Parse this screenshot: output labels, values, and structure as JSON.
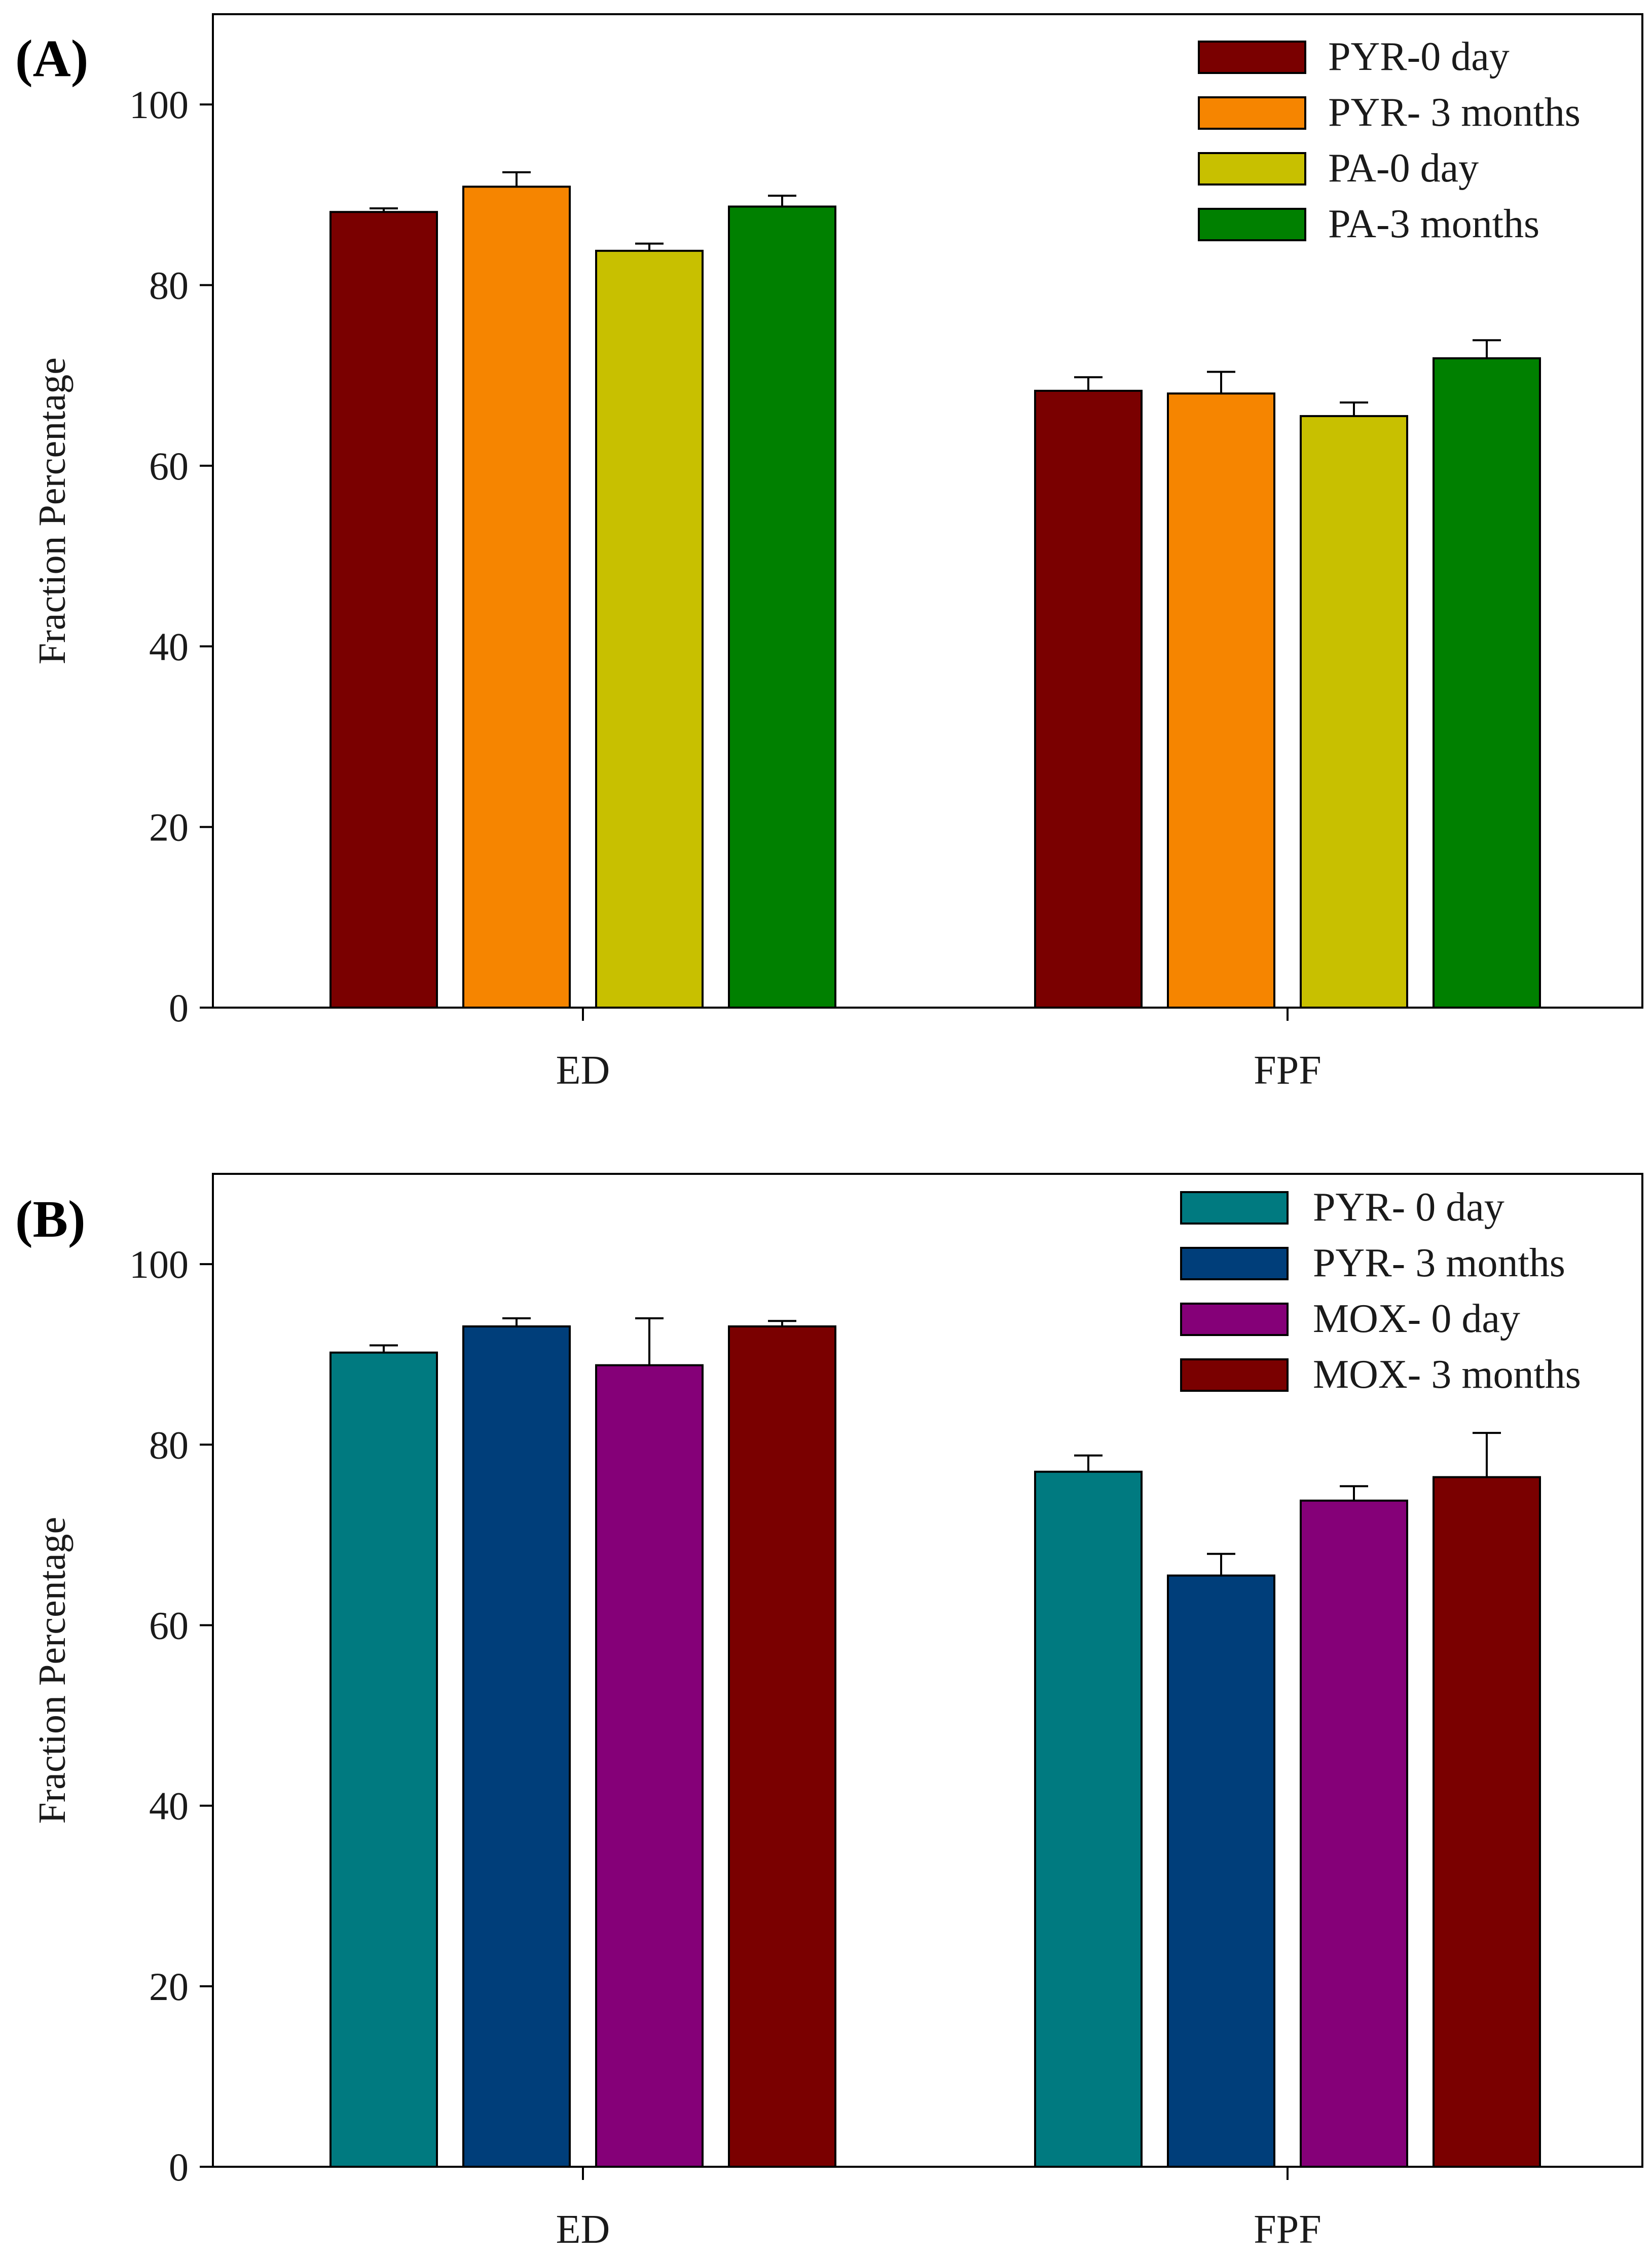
{
  "chart_data": [
    {
      "panel_label": "(A)",
      "type": "bar",
      "categories": [
        "ED",
        "FPF"
      ],
      "ylabel": "Fraction Percentage",
      "ylim": [
        0,
        110
      ],
      "yticks": [
        0,
        20,
        40,
        60,
        80,
        100
      ],
      "legend_position": "top-right",
      "series": [
        {
          "name": "PYR-0 day",
          "color": "#7a0000",
          "values": [
            88.1,
            68.3
          ],
          "errors": [
            0.4,
            1.5
          ]
        },
        {
          "name": "PYR- 3 months",
          "color": "#f68500",
          "values": [
            90.9,
            68.0
          ],
          "errors": [
            1.6,
            2.4
          ]
        },
        {
          "name": "PA-0 day",
          "color": "#c8c000",
          "values": [
            83.8,
            65.5
          ],
          "errors": [
            0.8,
            1.5
          ]
        },
        {
          "name": "PA-3 months",
          "color": "#008000",
          "values": [
            88.7,
            71.9
          ],
          "errors": [
            1.2,
            2.0
          ]
        }
      ]
    },
    {
      "panel_label": "(B)",
      "type": "bar",
      "categories": [
        "ED",
        "FPF"
      ],
      "ylabel": "Fraction Percentage",
      "ylim": [
        0,
        110
      ],
      "yticks": [
        0,
        20,
        40,
        60,
        80,
        100
      ],
      "legend_position": "top-right",
      "series": [
        {
          "name": "PYR- 0 day",
          "color": "#007a80",
          "values": [
            90.2,
            77.0
          ],
          "errors": [
            0.8,
            1.8
          ]
        },
        {
          "name": "PYR- 3 months",
          "color": "#003e7a",
          "values": [
            93.1,
            65.5
          ],
          "errors": [
            0.9,
            2.4
          ]
        },
        {
          "name": "MOX- 0 day",
          "color": "#850078",
          "values": [
            88.8,
            73.8
          ],
          "errors": [
            5.2,
            1.6
          ]
        },
        {
          "name": "MOX- 3 months",
          "color": "#7a0000",
          "values": [
            93.1,
            76.4
          ],
          "errors": [
            0.6,
            4.9
          ]
        }
      ]
    }
  ]
}
